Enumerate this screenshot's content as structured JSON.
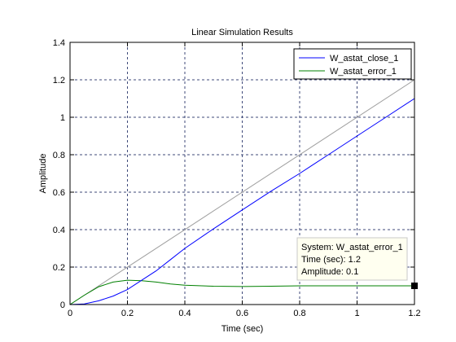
{
  "chart_data": {
    "type": "line",
    "title": "Linear Simulation Results",
    "xlabel": "Time (sec)",
    "ylabel": "Amplitude",
    "xlim": [
      0,
      1.2
    ],
    "ylim": [
      0,
      1.4
    ],
    "xticks": [
      "0",
      "0.2",
      "0.4",
      "0.6",
      "0.8",
      "1",
      "1.2"
    ],
    "yticks": [
      "0",
      "0.2",
      "0.4",
      "0.6",
      "0.8",
      "1",
      "1.2",
      "1.4"
    ],
    "grid": true,
    "legend_position": "top-right",
    "series": [
      {
        "name": "W_astat_close_1",
        "color": "#0000ff",
        "x": [
          0,
          0.05,
          0.1,
          0.15,
          0.2,
          0.25,
          0.3,
          0.35,
          0.4,
          0.5,
          0.6,
          0.7,
          0.8,
          0.9,
          1.0,
          1.1,
          1.2
        ],
        "y": [
          0,
          0.003,
          0.02,
          0.045,
          0.08,
          0.13,
          0.18,
          0.24,
          0.3,
          0.405,
          0.505,
          0.605,
          0.7,
          0.8,
          0.9,
          1.0,
          1.1
        ]
      },
      {
        "name": "W_astat_error_1",
        "color": "#008000",
        "x": [
          0,
          0.05,
          0.1,
          0.15,
          0.2,
          0.25,
          0.3,
          0.35,
          0.4,
          0.5,
          0.6,
          0.7,
          0.8,
          0.9,
          1.0,
          1.1,
          1.2
        ],
        "y": [
          0,
          0.05,
          0.095,
          0.12,
          0.13,
          0.127,
          0.12,
          0.11,
          0.103,
          0.098,
          0.096,
          0.098,
          0.1,
          0.1,
          0.1,
          0.1,
          0.1
        ]
      },
      {
        "name": "",
        "color": "#a0a0a0",
        "x": [
          0,
          1.2
        ],
        "y": [
          0,
          1.2
        ]
      }
    ],
    "datatip": {
      "series_line": "System: W_astat_error_1",
      "time_line": "Time (sec): 1.2",
      "amplitude_line": "Amplitude: 0.1",
      "x": 1.2,
      "y": 0.1
    }
  }
}
